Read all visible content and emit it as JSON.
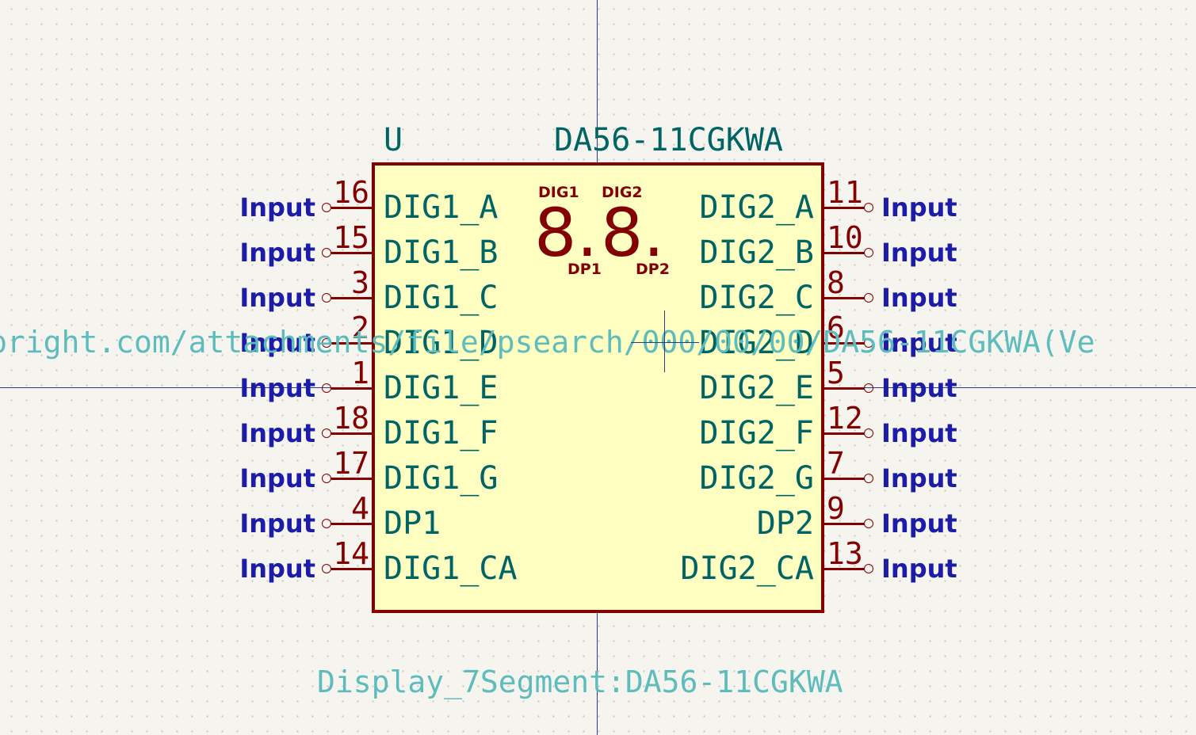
{
  "component": {
    "reference": "U",
    "value": "DA56-11CGKWA",
    "library_id": "Display_7Segment:DA56-11CGKWA",
    "datasheet_url": "pright.com/attachments/file/psearch/000/00/00/DA56-11CGKWA(Ve",
    "graphic": {
      "digit1": "8.",
      "digit2": "8.",
      "label_dig1": "DIG1",
      "label_dig2": "DIG2",
      "label_dp1": "DP1",
      "label_dp2": "DP2"
    }
  },
  "left_pins": [
    {
      "number": "16",
      "name": "DIG1_A",
      "net": "Input"
    },
    {
      "number": "15",
      "name": "DIG1_B",
      "net": "Input"
    },
    {
      "number": "3",
      "name": "DIG1_C",
      "net": "Input"
    },
    {
      "number": "2",
      "name": "DIG1_D",
      "net": "Input"
    },
    {
      "number": "1",
      "name": "DIG1_E",
      "net": "Input"
    },
    {
      "number": "18",
      "name": "DIG1_F",
      "net": "Input"
    },
    {
      "number": "17",
      "name": "DIG1_G",
      "net": "Input"
    },
    {
      "number": "4",
      "name": "DP1",
      "net": "Input"
    },
    {
      "number": "14",
      "name": "DIG1_CA",
      "net": "Input"
    }
  ],
  "right_pins": [
    {
      "number": "11",
      "name": "DIG2_A",
      "net": "Input"
    },
    {
      "number": "10",
      "name": "DIG2_B",
      "net": "Input"
    },
    {
      "number": "8",
      "name": "DIG2_C",
      "net": "Input"
    },
    {
      "number": "6",
      "name": "DIG2_D",
      "net": "Input"
    },
    {
      "number": "5",
      "name": "DIG2_E",
      "net": "Input"
    },
    {
      "number": "12",
      "name": "DIG2_F",
      "net": "Input"
    },
    {
      "number": "7",
      "name": "DIG2_G",
      "net": "Input"
    },
    {
      "number": "9",
      "name": "DP2",
      "net": "Input"
    },
    {
      "number": "13",
      "name": "DIG2_CA",
      "net": "Input"
    }
  ],
  "colors": {
    "background": "#f5f4ef",
    "body_fill": "#ffffc2",
    "body_outline": "#840000",
    "field_text": "#006464",
    "net_label": "#1c1ca8",
    "axis": "#2b3a8f"
  }
}
